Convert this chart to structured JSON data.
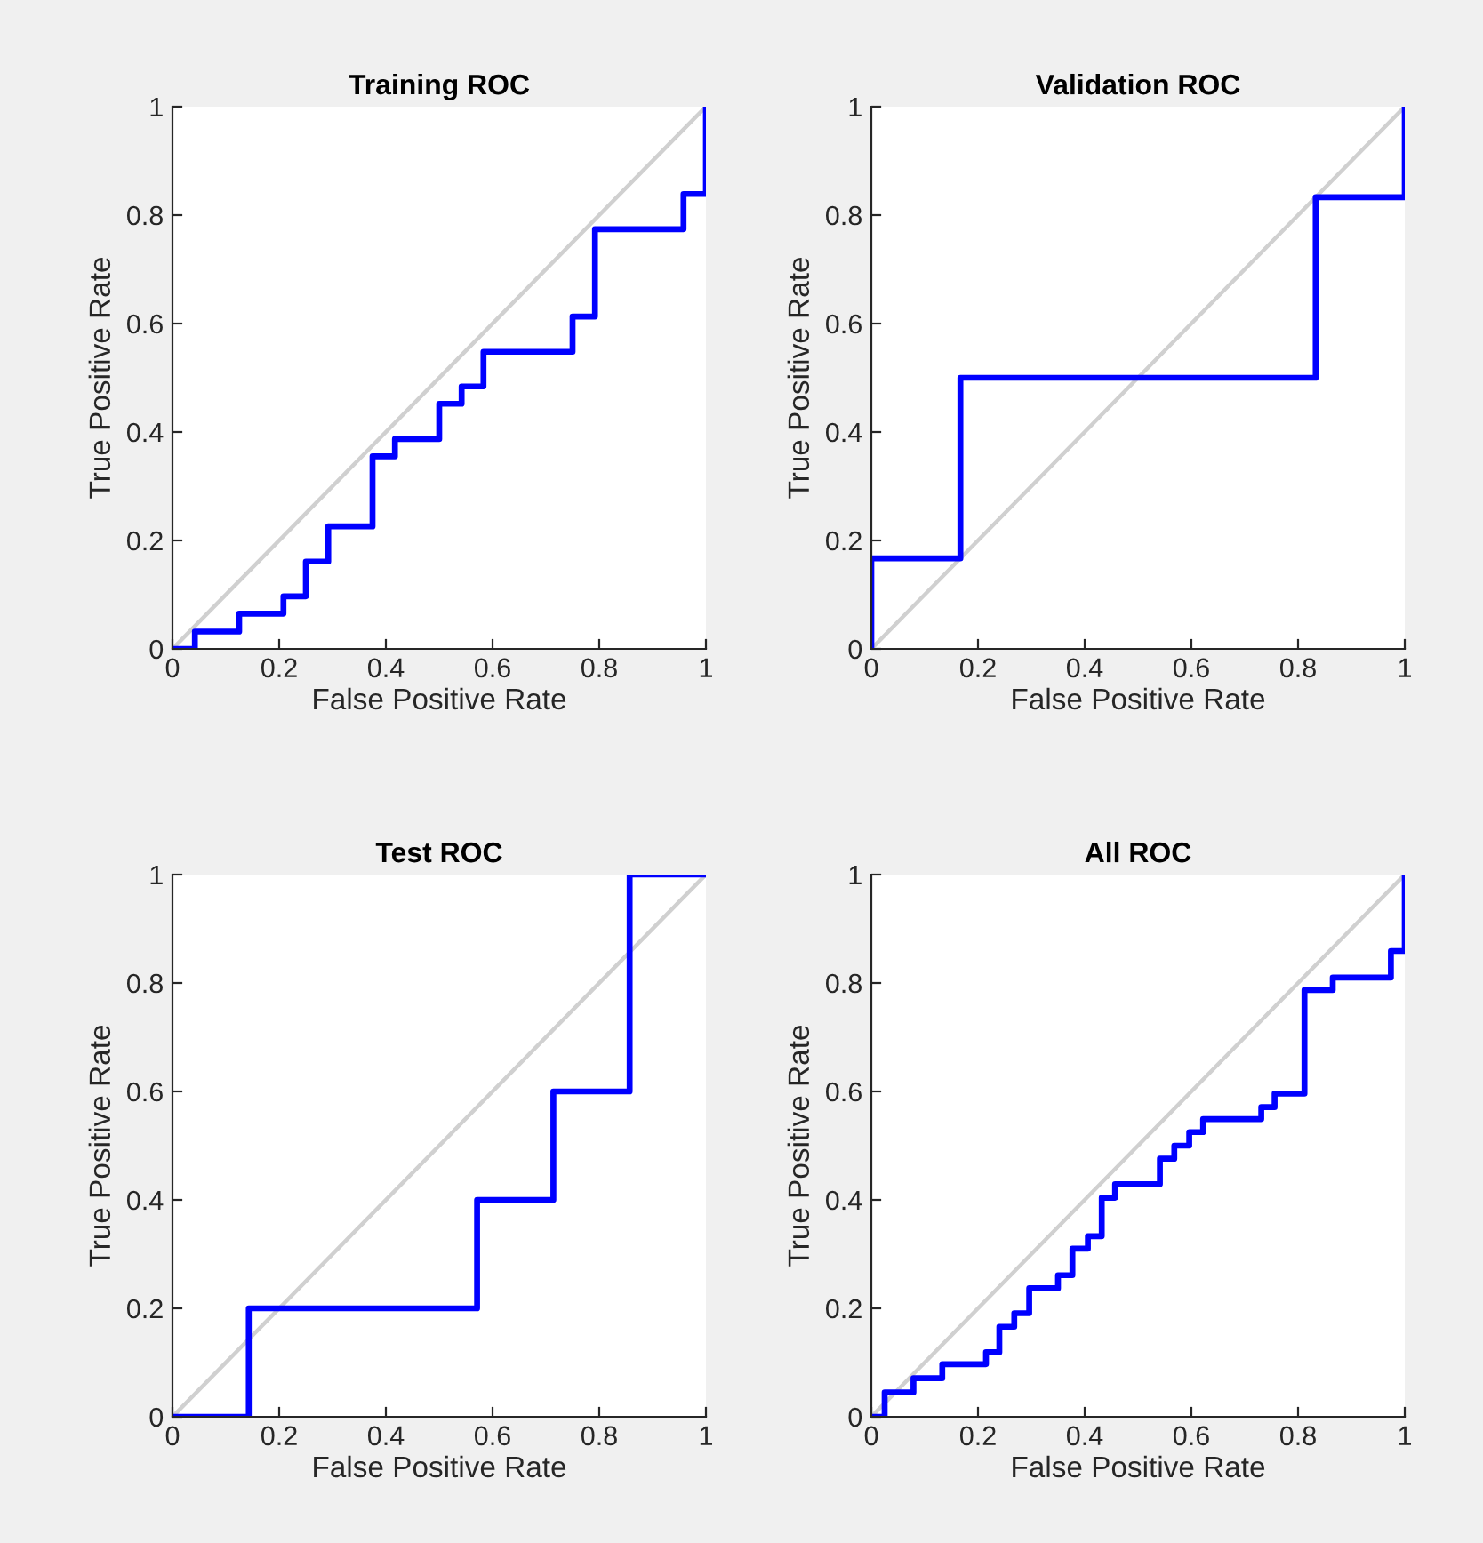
{
  "chart_data": [
    {
      "type": "step",
      "title": "Training ROC",
      "xlabel": "False Positive Rate",
      "ylabel": "True Positive Rate",
      "xlim": [
        0,
        1
      ],
      "ylim": [
        0,
        1
      ],
      "xticks": [
        0,
        0.2,
        0.4,
        0.6,
        0.8,
        1
      ],
      "yticks": [
        0,
        0.2,
        0.4,
        0.6,
        0.8,
        1
      ],
      "grid": false,
      "series": [
        {
          "type": "line",
          "color": "#d0d0d0",
          "x": [
            0,
            1
          ],
          "values": [
            0,
            1
          ]
        },
        {
          "color": "#0000ff",
          "x": [
            0,
            0.042,
            0.125,
            0.208,
            0.25,
            0.292,
            0.375,
            0.417,
            0.5,
            0.542,
            0.583,
            0.75,
            0.792,
            0.958,
            1
          ],
          "values": [
            0,
            0.032,
            0.065,
            0.097,
            0.161,
            0.226,
            0.355,
            0.387,
            0.452,
            0.484,
            0.548,
            0.613,
            0.774,
            0.839,
            1
          ]
        }
      ]
    },
    {
      "type": "step",
      "title": "Validation ROC",
      "xlabel": "False Positive Rate",
      "ylabel": "True Positive Rate",
      "xlim": [
        0,
        1
      ],
      "ylim": [
        0,
        1
      ],
      "xticks": [
        0,
        0.2,
        0.4,
        0.6,
        0.8,
        1
      ],
      "yticks": [
        0,
        0.2,
        0.4,
        0.6,
        0.8,
        1
      ],
      "grid": false,
      "series": [
        {
          "type": "line",
          "color": "#d0d0d0",
          "x": [
            0,
            1
          ],
          "values": [
            0,
            1
          ]
        },
        {
          "color": "#0000ff",
          "x": [
            0,
            0,
            0.167,
            0.833,
            1
          ],
          "values": [
            0,
            0.167,
            0.5,
            0.833,
            1
          ]
        }
      ]
    },
    {
      "type": "step",
      "title": "Test ROC",
      "xlabel": "False Positive Rate",
      "ylabel": "True Positive Rate",
      "xlim": [
        0,
        1
      ],
      "ylim": [
        0,
        1
      ],
      "xticks": [
        0,
        0.2,
        0.4,
        0.6,
        0.8,
        1
      ],
      "yticks": [
        0,
        0.2,
        0.4,
        0.6,
        0.8,
        1
      ],
      "grid": false,
      "series": [
        {
          "type": "line",
          "color": "#d0d0d0",
          "x": [
            0,
            1
          ],
          "values": [
            0,
            1
          ]
        },
        {
          "color": "#0000ff",
          "x": [
            0,
            0.143,
            0.571,
            0.714,
            0.857,
            1
          ],
          "values": [
            0,
            0.2,
            0.4,
            0.6,
            1,
            1
          ]
        }
      ]
    },
    {
      "type": "step",
      "title": "All ROC",
      "xlabel": "False Positive Rate",
      "ylabel": "True Positive Rate",
      "xlim": [
        0,
        1
      ],
      "ylim": [
        0,
        1
      ],
      "xticks": [
        0,
        0.2,
        0.4,
        0.6,
        0.8,
        1
      ],
      "yticks": [
        0,
        0.2,
        0.4,
        0.6,
        0.8,
        1
      ],
      "grid": false,
      "series": [
        {
          "type": "line",
          "color": "#d0d0d0",
          "x": [
            0,
            1
          ],
          "values": [
            0,
            1
          ]
        },
        {
          "color": "#0000ff",
          "x": [
            0,
            0.025,
            0.079,
            0.133,
            0.215,
            0.24,
            0.268,
            0.296,
            0.35,
            0.377,
            0.406,
            0.432,
            0.457,
            0.541,
            0.568,
            0.596,
            0.622,
            0.731,
            0.756,
            0.812,
            0.865,
            0.974,
            1
          ],
          "values": [
            0,
            0.045,
            0.071,
            0.097,
            0.119,
            0.166,
            0.191,
            0.237,
            0.261,
            0.31,
            0.333,
            0.404,
            0.429,
            0.476,
            0.5,
            0.525,
            0.549,
            0.571,
            0.596,
            0.787,
            0.81,
            0.859,
            1
          ]
        }
      ]
    }
  ]
}
